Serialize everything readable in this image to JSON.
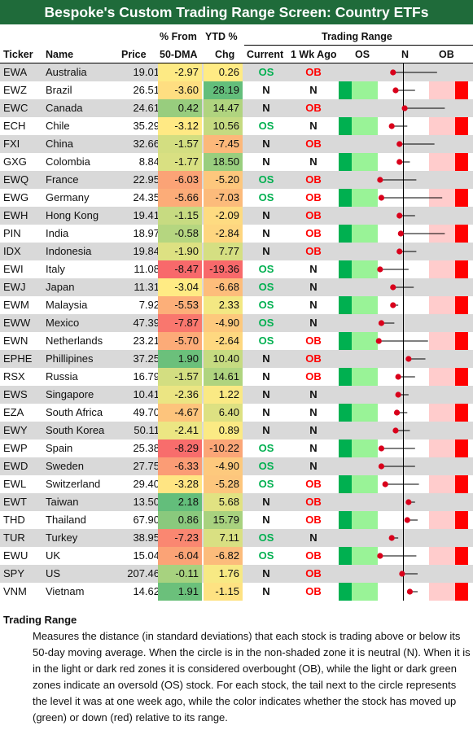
{
  "title": "Bespoke's Custom Trading Range Screen: Country ETFs",
  "headers": {
    "ticker": "Ticker",
    "name": "Name",
    "price": "Price",
    "dma_top": "% From",
    "dma_bottom": "50-DMA",
    "ytd_top": "YTD %",
    "ytd_bottom": "Chg",
    "trading_range": "Trading Range",
    "current": "Current",
    "week_ago": "1 Wk Ago",
    "os": "OS",
    "n": "N",
    "ob": "OB"
  },
  "colors": {
    "title_bg": "#1f6b3a",
    "dark_green": "#00b050",
    "light_green": "#99f397",
    "light_red": "#ffcccc",
    "dark_red": "#ff0000",
    "os_text": "#00b050",
    "ob_text": "#ff0000",
    "dot": "#d9001b",
    "tail": "#000000"
  },
  "chart_data": {
    "type": "table",
    "x_axis": "standard deviations from 50-day moving average",
    "zones": [
      {
        "label": "OS",
        "from": -2.5,
        "to": -2.0,
        "color": "#00b050"
      },
      {
        "label": "",
        "from": -2.0,
        "to": -1.0,
        "color": "#99f397"
      },
      {
        "label": "N",
        "from": -1.0,
        "to": 1.0,
        "color": "#ffffff"
      },
      {
        "label": "",
        "from": 1.0,
        "to": 2.0,
        "color": "#ffcccc"
      },
      {
        "label": "OB",
        "from": 2.0,
        "to": 2.5,
        "color": "#ff0000"
      }
    ],
    "rows": [
      {
        "ticker": "EWA",
        "name": "Australia",
        "price": "19.01",
        "dma": "-2.97",
        "ytd": "0.26",
        "current": "OS",
        "week_ago": "OB",
        "sd_now": -0.4,
        "sd_week": 1.3
      },
      {
        "ticker": "EWZ",
        "name": "Brazil",
        "price": "26.51",
        "dma": "-3.60",
        "ytd": "28.19",
        "current": "N",
        "week_ago": "N",
        "sd_now": -0.3,
        "sd_week": 0.45
      },
      {
        "ticker": "EWC",
        "name": "Canada",
        "price": "24.61",
        "dma": "0.42",
        "ytd": "14.47",
        "current": "N",
        "week_ago": "OB",
        "sd_now": 0.05,
        "sd_week": 1.6
      },
      {
        "ticker": "ECH",
        "name": "Chile",
        "price": "35.29",
        "dma": "-3.12",
        "ytd": "10.56",
        "current": "OS",
        "week_ago": "N",
        "sd_now": -0.45,
        "sd_week": 0.15
      },
      {
        "ticker": "FXI",
        "name": "China",
        "price": "32.66",
        "dma": "-1.57",
        "ytd": "-7.45",
        "current": "N",
        "week_ago": "OB",
        "sd_now": -0.15,
        "sd_week": 1.2
      },
      {
        "ticker": "GXG",
        "name": "Colombia",
        "price": "8.84",
        "dma": "-1.77",
        "ytd": "18.50",
        "current": "N",
        "week_ago": "N",
        "sd_now": -0.15,
        "sd_week": 0.25
      },
      {
        "ticker": "EWQ",
        "name": "France",
        "price": "22.95",
        "dma": "-6.03",
        "ytd": "-5.20",
        "current": "OS",
        "week_ago": "OB",
        "sd_now": -0.9,
        "sd_week": 0.5
      },
      {
        "ticker": "EWG",
        "name": "Germany",
        "price": "24.35",
        "dma": "-5.66",
        "ytd": "-7.03",
        "current": "OS",
        "week_ago": "OB",
        "sd_now": -0.85,
        "sd_week": 1.5
      },
      {
        "ticker": "EWH",
        "name": "Hong Kong",
        "price": "19.41",
        "dma": "-1.15",
        "ytd": "-2.09",
        "current": "N",
        "week_ago": "OB",
        "sd_now": -0.15,
        "sd_week": 0.45
      },
      {
        "ticker": "PIN",
        "name": "India",
        "price": "18.97",
        "dma": "-0.58",
        "ytd": "-2.84",
        "current": "N",
        "week_ago": "OB",
        "sd_now": -0.1,
        "sd_week": 1.6
      },
      {
        "ticker": "IDX",
        "name": "Indonesia",
        "price": "19.84",
        "dma": "-1.90",
        "ytd": "7.77",
        "current": "N",
        "week_ago": "OB",
        "sd_now": -0.15,
        "sd_week": 0.5
      },
      {
        "ticker": "EWI",
        "name": "Italy",
        "price": "11.08",
        "dma": "-8.47",
        "ytd": "-19.36",
        "current": "OS",
        "week_ago": "N",
        "sd_now": -0.9,
        "sd_week": 0.2
      },
      {
        "ticker": "EWJ",
        "name": "Japan",
        "price": "11.31",
        "dma": "-3.04",
        "ytd": "-6.68",
        "current": "OS",
        "week_ago": "N",
        "sd_now": -0.4,
        "sd_week": 0.4
      },
      {
        "ticker": "EWM",
        "name": "Malaysia",
        "price": "7.92",
        "dma": "-5.53",
        "ytd": "2.33",
        "current": "OS",
        "week_ago": "N",
        "sd_now": -0.4,
        "sd_week": -0.2
      },
      {
        "ticker": "EWW",
        "name": "Mexico",
        "price": "47.39",
        "dma": "-7.87",
        "ytd": "-4.90",
        "current": "OS",
        "week_ago": "N",
        "sd_now": -0.85,
        "sd_week": -0.35
      },
      {
        "ticker": "EWN",
        "name": "Netherlands",
        "price": "23.21",
        "dma": "-5.70",
        "ytd": "-2.64",
        "current": "OS",
        "week_ago": "OB",
        "sd_now": -0.95,
        "sd_week": 0.95
      },
      {
        "ticker": "EPHE",
        "name": "Phillipines",
        "price": "37.25",
        "dma": "1.90",
        "ytd": "10.40",
        "current": "N",
        "week_ago": "OB",
        "sd_now": 0.2,
        "sd_week": 0.85
      },
      {
        "ticker": "RSX",
        "name": "Russia",
        "price": "16.79",
        "dma": "-1.57",
        "ytd": "14.61",
        "current": "N",
        "week_ago": "OB",
        "sd_now": -0.2,
        "sd_week": 0.45
      },
      {
        "ticker": "EWS",
        "name": "Singapore",
        "price": "10.41",
        "dma": "-2.36",
        "ytd": "1.22",
        "current": "N",
        "week_ago": "N",
        "sd_now": -0.2,
        "sd_week": 0.2
      },
      {
        "ticker": "EZA",
        "name": "South Africa",
        "price": "49.70",
        "dma": "-4.67",
        "ytd": "6.40",
        "current": "N",
        "week_ago": "N",
        "sd_now": -0.25,
        "sd_week": 0.15
      },
      {
        "ticker": "EWY",
        "name": "South Korea",
        "price": "50.11",
        "dma": "-2.41",
        "ytd": "0.89",
        "current": "N",
        "week_ago": "N",
        "sd_now": -0.3,
        "sd_week": 0.25
      },
      {
        "ticker": "EWP",
        "name": "Spain",
        "price": "25.38",
        "dma": "-8.29",
        "ytd": "-10.22",
        "current": "OS",
        "week_ago": "N",
        "sd_now": -0.85,
        "sd_week": 0.45
      },
      {
        "ticker": "EWD",
        "name": "Sweden",
        "price": "27.75",
        "dma": "-6.33",
        "ytd": "-4.90",
        "current": "OS",
        "week_ago": "N",
        "sd_now": -0.85,
        "sd_week": 0.45
      },
      {
        "ticker": "EWL",
        "name": "Switzerland",
        "price": "29.40",
        "dma": "-3.28",
        "ytd": "-5.28",
        "current": "OS",
        "week_ago": "OB",
        "sd_now": -0.7,
        "sd_week": 0.6
      },
      {
        "ticker": "EWT",
        "name": "Taiwan",
        "price": "13.50",
        "dma": "2.18",
        "ytd": "5.68",
        "current": "N",
        "week_ago": "OB",
        "sd_now": 0.2,
        "sd_week": 0.45
      },
      {
        "ticker": "THD",
        "name": "Thailand",
        "price": "67.90",
        "dma": "0.86",
        "ytd": "15.79",
        "current": "N",
        "week_ago": "OB",
        "sd_now": 0.15,
        "sd_week": 0.55
      },
      {
        "ticker": "TUR",
        "name": "Turkey",
        "price": "38.95",
        "dma": "-7.23",
        "ytd": "7.11",
        "current": "OS",
        "week_ago": "N",
        "sd_now": -0.45,
        "sd_week": -0.2
      },
      {
        "ticker": "EWU",
        "name": "UK",
        "price": "15.04",
        "dma": "-6.04",
        "ytd": "-6.82",
        "current": "OS",
        "week_ago": "OB",
        "sd_now": -0.9,
        "sd_week": 0.5
      },
      {
        "ticker": "SPY",
        "name": "US",
        "price": "207.46",
        "dma": "-0.11",
        "ytd": "1.76",
        "current": "N",
        "week_ago": "OB",
        "sd_now": -0.05,
        "sd_week": 0.55
      },
      {
        "ticker": "VNM",
        "name": "Vietnam",
        "price": "14.62",
        "dma": "1.91",
        "ytd": "-1.15",
        "current": "N",
        "week_ago": "OB",
        "sd_now": 0.25,
        "sd_week": 0.55
      }
    ]
  },
  "note": {
    "title": "Trading Range",
    "body": "Measures the distance (in standard deviations) that each stock is trading above or below its 50-day moving average.  When the circle is in the non-shaded zone it is neutral (N).  When it is in the light or dark red zones it is considered overbought (OB), while the light or dark green zones indicate an oversold (OS) stock.  For each stock, the tail next to the circle represents the level it was at one week ago, while the color indicates whether the stock has moved up (green) or down (red) relative to its range."
  }
}
